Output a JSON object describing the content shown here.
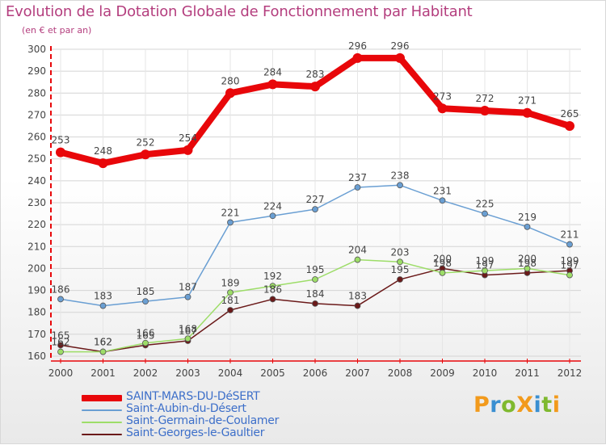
{
  "title": "Evolution de la Dotation Globale de Fonctionnement par Habitant",
  "subtitle": "(en € et par an)",
  "brand": {
    "text": "ProXiti",
    "colors": [
      "#f29a1c",
      "#3a8fd1",
      "#7fb92f"
    ]
  },
  "chart_data": {
    "type": "line",
    "title": "Evolution de la Dotation Globale de Fonctionnement par Habitant",
    "subtitle": "(en € et par an)",
    "x": [
      "2000",
      "2001",
      "2002",
      "2003",
      "2004",
      "2005",
      "2006",
      "2007",
      "2008",
      "2009",
      "2010",
      "2011",
      "2012"
    ],
    "ylim": [
      160,
      300
    ],
    "yticks": [
      160,
      170,
      180,
      190,
      200,
      210,
      220,
      230,
      240,
      250,
      260,
      270,
      280,
      290,
      300
    ],
    "grid": true,
    "legend_position": "bottom-left",
    "series": [
      {
        "name": "SAINT-MARS-DU-DéSERT",
        "color": "#e8070a",
        "values": [
          253,
          248,
          252,
          254,
          280,
          284,
          283,
          296,
          296,
          273,
          272,
          271,
          265
        ]
      },
      {
        "name": "Saint-Aubin-du-Désert",
        "color": "#6a9fd3",
        "values": [
          186,
          183,
          185,
          187,
          221,
          224,
          227,
          237,
          238,
          231,
          225,
          219,
          211
        ]
      },
      {
        "name": "Saint-Germain-de-Coulamer",
        "color": "#9ddd68",
        "values": [
          162,
          162,
          166,
          168,
          189,
          192,
          195,
          204,
          203,
          198,
          199,
          200,
          197
        ]
      },
      {
        "name": "Saint-Georges-le-Gaultier",
        "color": "#6b1a1a",
        "values": [
          165,
          162,
          165,
          167,
          181,
          186,
          184,
          183,
          195,
          200,
          197,
          198,
          199
        ]
      }
    ]
  }
}
